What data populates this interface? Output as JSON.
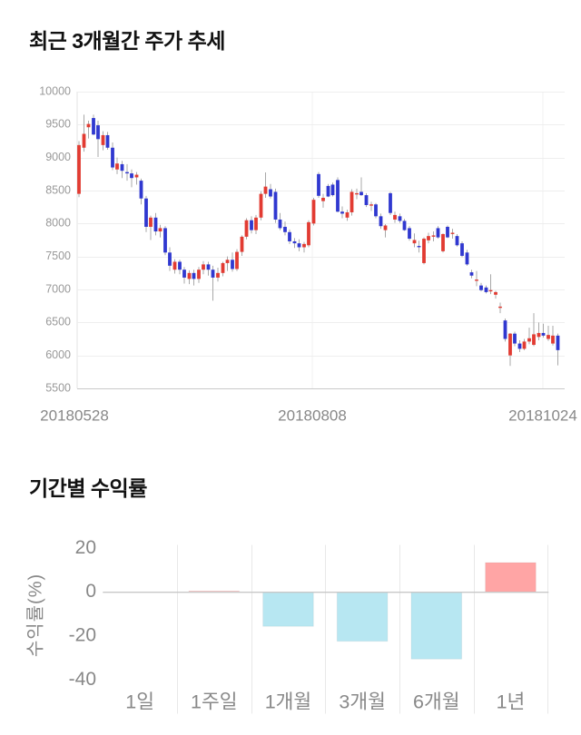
{
  "chart_data": [
    {
      "type": "candlestick",
      "title": "최근 3개월간 주가 추세",
      "ylim": [
        5500,
        10000
      ],
      "y_ticks": [
        10000,
        9500,
        9000,
        8500,
        8000,
        7500,
        7000,
        6500,
        6000,
        5500
      ],
      "x_tick_labels": [
        "20180528",
        "20180808",
        "20181024"
      ],
      "grid": true,
      "legend": "none",
      "colors": {
        "up": "#e23b32",
        "down": "#3038d0",
        "wick": "#a8a8a8",
        "grid": "#eeeeee",
        "axis": "#c9c9c9",
        "tick_text": "#999999",
        "date_text": "#888888"
      },
      "candles_format": [
        "open",
        "high",
        "low",
        "close"
      ],
      "candles": [
        [
          8450,
          9250,
          8400,
          9190
        ],
        [
          9150,
          9650,
          9090,
          9360
        ],
        [
          9460,
          9560,
          9290,
          9510
        ],
        [
          9600,
          9650,
          9340,
          9350
        ],
        [
          9490,
          9560,
          9010,
          9280
        ],
        [
          9190,
          9400,
          9110,
          9340
        ],
        [
          9340,
          9390,
          9120,
          9150
        ],
        [
          9150,
          9230,
          8810,
          8850
        ],
        [
          8820,
          9000,
          8750,
          8910
        ],
        [
          8900,
          8950,
          8690,
          8800
        ],
        [
          8780,
          8900,
          8650,
          8760
        ],
        [
          8760,
          8820,
          8550,
          8690
        ],
        [
          8700,
          8780,
          8590,
          8740
        ],
        [
          8650,
          8680,
          8290,
          8380
        ],
        [
          8380,
          8420,
          7870,
          7950
        ],
        [
          7950,
          8120,
          7750,
          8090
        ],
        [
          8090,
          8160,
          7820,
          7880
        ],
        [
          7880,
          7980,
          7790,
          7930
        ],
        [
          7930,
          7960,
          7520,
          7560
        ],
        [
          7560,
          7640,
          7280,
          7360
        ],
        [
          7300,
          7460,
          7240,
          7420
        ],
        [
          7420,
          7450,
          7230,
          7300
        ],
        [
          7300,
          7340,
          7090,
          7180
        ],
        [
          7160,
          7290,
          7080,
          7250
        ],
        [
          7250,
          7300,
          7060,
          7160
        ],
        [
          7160,
          7340,
          7100,
          7300
        ],
        [
          7300,
          7430,
          7230,
          7380
        ],
        [
          7380,
          7420,
          7210,
          7300
        ],
        [
          7300,
          7360,
          6830,
          7180
        ],
        [
          7180,
          7330,
          7120,
          7250
        ],
        [
          7250,
          7420,
          7200,
          7400
        ],
        [
          7400,
          7500,
          7280,
          7450
        ],
        [
          7450,
          7560,
          7270,
          7310
        ],
        [
          7310,
          7610,
          7280,
          7570
        ],
        [
          7570,
          7820,
          7510,
          7800
        ],
        [
          7800,
          8080,
          7760,
          8050
        ],
        [
          8050,
          8110,
          7850,
          7900
        ],
        [
          7900,
          8130,
          7840,
          8090
        ],
        [
          8090,
          8490,
          8050,
          8450
        ],
        [
          8450,
          8775,
          8390,
          8560
        ],
        [
          8520,
          8600,
          8380,
          8410
        ],
        [
          8480,
          8530,
          8010,
          8060
        ],
        [
          8060,
          8160,
          7900,
          7930
        ],
        [
          7950,
          8030,
          7820,
          7870
        ],
        [
          7870,
          7910,
          7690,
          7730
        ],
        [
          7730,
          7780,
          7630,
          7700
        ],
        [
          7700,
          7760,
          7580,
          7640
        ],
        [
          7640,
          7720,
          7560,
          7690
        ],
        [
          7670,
          8050,
          7640,
          8020
        ],
        [
          8000,
          8390,
          7970,
          8360
        ],
        [
          8750,
          8780,
          8390,
          8420
        ],
        [
          8340,
          8450,
          8240,
          8390
        ],
        [
          8570,
          8600,
          8400,
          8410
        ],
        [
          8590,
          8620,
          8410,
          8430
        ],
        [
          8660,
          8700,
          8170,
          8180
        ],
        [
          8180,
          8260,
          8080,
          8150
        ],
        [
          8090,
          8210,
          8040,
          8170
        ],
        [
          8170,
          8520,
          8120,
          8480
        ],
        [
          8450,
          8530,
          8370,
          8460
        ],
        [
          8480,
          8700,
          8420,
          8430
        ],
        [
          8430,
          8460,
          8250,
          8280
        ],
        [
          8280,
          8330,
          8190,
          8290
        ],
        [
          8290,
          8310,
          8080,
          8110
        ],
        [
          8110,
          8150,
          7920,
          7960
        ],
        [
          7900,
          7990,
          7790,
          7970
        ],
        [
          8460,
          8480,
          8130,
          8160
        ],
        [
          8060,
          8180,
          8010,
          8130
        ],
        [
          8110,
          8150,
          8010,
          8040
        ],
        [
          8040,
          8070,
          7890,
          7900
        ],
        [
          7930,
          7960,
          7740,
          7770
        ],
        [
          7700,
          7850,
          7640,
          7750
        ],
        [
          7660,
          7740,
          7560,
          7650
        ],
        [
          7400,
          7790,
          7380,
          7770
        ],
        [
          7745,
          7860,
          7700,
          7810
        ],
        [
          7800,
          7880,
          7730,
          7820
        ],
        [
          7930,
          7960,
          7770,
          7790
        ],
        [
          7580,
          7850,
          7560,
          7840
        ],
        [
          7950,
          7970,
          7780,
          7790
        ],
        [
          7850,
          7920,
          7770,
          7860
        ],
        [
          7810,
          7840,
          7650,
          7670
        ],
        [
          7700,
          7730,
          7490,
          7510
        ],
        [
          7560,
          7600,
          7360,
          7380
        ],
        [
          7260,
          7300,
          7170,
          7210
        ],
        [
          7150,
          7280,
          7050,
          7150
        ],
        [
          7060,
          7100,
          6970,
          6990
        ],
        [
          7030,
          7060,
          6940,
          6960
        ],
        [
          6990,
          7230,
          6930,
          6990
        ],
        [
          6920,
          6980,
          6860,
          6960
        ],
        [
          6740,
          6800,
          6640,
          6740
        ],
        [
          6530,
          6560,
          6210,
          6250
        ],
        [
          6000,
          6340,
          5840,
          6330
        ],
        [
          6330,
          6360,
          6140,
          6180
        ],
        [
          6180,
          6230,
          6050,
          6100
        ],
        [
          6100,
          6250,
          6080,
          6210
        ],
        [
          6210,
          6420,
          6170,
          6260
        ],
        [
          6160,
          6640,
          6140,
          6320
        ],
        [
          6280,
          6500,
          6230,
          6340
        ],
        [
          6340,
          6480,
          6270,
          6300
        ],
        [
          6250,
          6450,
          6220,
          6310
        ],
        [
          6180,
          6450,
          6150,
          6300
        ],
        [
          6300,
          6330,
          5850,
          6080
        ]
      ]
    },
    {
      "type": "bar",
      "title": "기간별 수익률",
      "ylabel": "수익률(%)",
      "categories": [
        "1일",
        "1주일",
        "1개월",
        "3개월",
        "6개월",
        "1년"
      ],
      "values": [
        0,
        0.5,
        -15.5,
        -22.3,
        -30.4,
        13.5
      ],
      "y_ticks": [
        20,
        0,
        -20,
        -40
      ],
      "ylim": [
        -44,
        22
      ],
      "grid": "vertical",
      "legend": "none",
      "colors": {
        "positive": "#ffa5a5",
        "negative": "#b7e7f2",
        "zero_line": "#c8c8c8",
        "grid": "#e8e8e8",
        "text": "#888888"
      }
    }
  ]
}
